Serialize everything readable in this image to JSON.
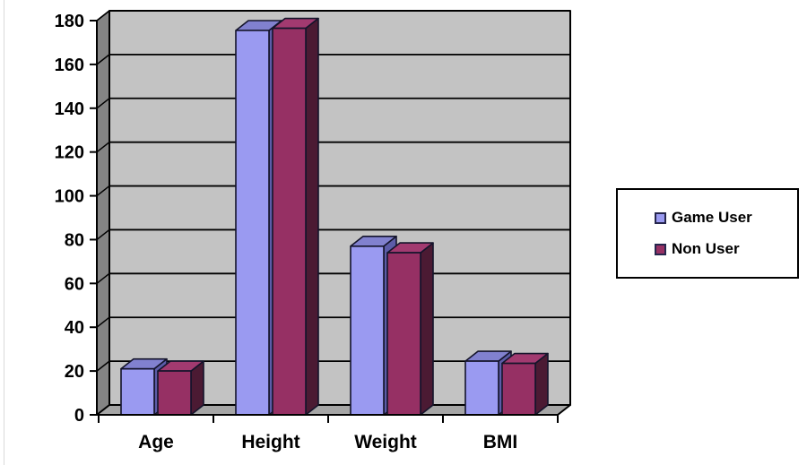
{
  "chart_data": {
    "type": "bar",
    "effect": "3d-clustered-column",
    "title": "",
    "xlabel": "",
    "ylabel": "",
    "categories": [
      "Age",
      "Height",
      "Weight",
      "BMI"
    ],
    "series": [
      {
        "name": "Game User",
        "values": [
          21,
          175.5,
          77,
          24.5
        ],
        "color": "#9a9af1",
        "top_color": "#8181cf",
        "side_color": "#5c5ca8"
      },
      {
        "name": "Non User",
        "values": [
          20,
          176.5,
          74,
          23.5
        ],
        "color": "#963064",
        "top_color": "#a23a70",
        "side_color": "#4b1a33"
      }
    ],
    "ylim": [
      0,
      180
    ],
    "ytick_step": 20,
    "ytick_labels": [
      "0",
      "20",
      "40",
      "60",
      "80",
      "100",
      "120",
      "140",
      "160",
      "180"
    ],
    "grid": true,
    "legend_position": "right",
    "colors": {
      "back_wall": "#c3c3c3",
      "side_wall": "#848484",
      "floor": "#a6a6a6",
      "gridline": "#000000",
      "bar_outline": "#14142b",
      "axis": "#000000",
      "text": "#000000",
      "legend_border": "#000000",
      "legend_swatch_border": "#26264d"
    }
  }
}
